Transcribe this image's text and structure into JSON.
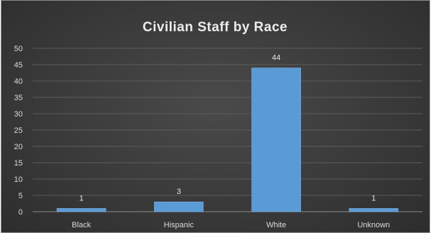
{
  "chart_data": {
    "type": "bar",
    "title": "Civilian Staff by Race",
    "categories": [
      "Black",
      "Hispanic",
      "White",
      "Unknown"
    ],
    "values": [
      1,
      3,
      44,
      1
    ],
    "data_labels": [
      "1",
      "3",
      "44",
      "1"
    ],
    "ylim": [
      0,
      50
    ],
    "yticks": [
      "0",
      "5",
      "10",
      "15",
      "20",
      "25",
      "30",
      "35",
      "40",
      "45",
      "50"
    ],
    "xlabel": "",
    "ylabel": "",
    "grid": true,
    "legend": "none",
    "bar_color": "#5b9bd5",
    "background_color": "#3d3d3d"
  }
}
